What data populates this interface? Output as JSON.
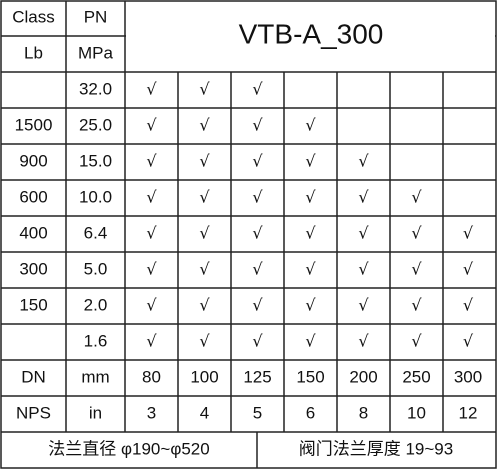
{
  "header": {
    "class": "Class",
    "lb": "Lb",
    "pn": "PN",
    "mpa": "MPa",
    "title": "VTB-A_300"
  },
  "rows": [
    {
      "pn": "32.0",
      "checks": [
        "√",
        "√",
        "√"
      ]
    },
    {
      "class": "1500",
      "pn": "25.0",
      "checks": [
        "√",
        "√",
        "√",
        "√"
      ]
    },
    {
      "class": "900",
      "pn": "15.0",
      "checks": [
        "√",
        "√",
        "√",
        "√",
        "√"
      ]
    },
    {
      "class": "600",
      "pn": "10.0",
      "checks": [
        "√",
        "√",
        "√",
        "√",
        "√",
        "√"
      ]
    },
    {
      "class": "400",
      "pn": "6.4",
      "checks": [
        "√",
        "√",
        "√",
        "√",
        "√",
        "√",
        "√"
      ]
    },
    {
      "class": "300",
      "pn": "5.0",
      "checks": [
        "√",
        "√",
        "√",
        "√",
        "√",
        "√",
        "√"
      ]
    },
    {
      "class": "150",
      "pn": "2.0",
      "checks": [
        "√",
        "√",
        "√",
        "√",
        "√",
        "√",
        "√"
      ]
    },
    {
      "pn": "1.6",
      "checks": [
        "√",
        "√",
        "√",
        "√",
        "√",
        "√",
        "√"
      ]
    }
  ],
  "dn": {
    "label": "DN",
    "unit": "mm",
    "values": [
      "80",
      "100",
      "125",
      "150",
      "200",
      "250",
      "300"
    ]
  },
  "nps": {
    "label": "NPS",
    "unit": "in",
    "values": [
      "3",
      "4",
      "5",
      "6",
      "8",
      "10",
      "12"
    ]
  },
  "footer": {
    "left": "法兰直径 φ190~φ520",
    "right": "阀门法兰厚度 19~93"
  }
}
